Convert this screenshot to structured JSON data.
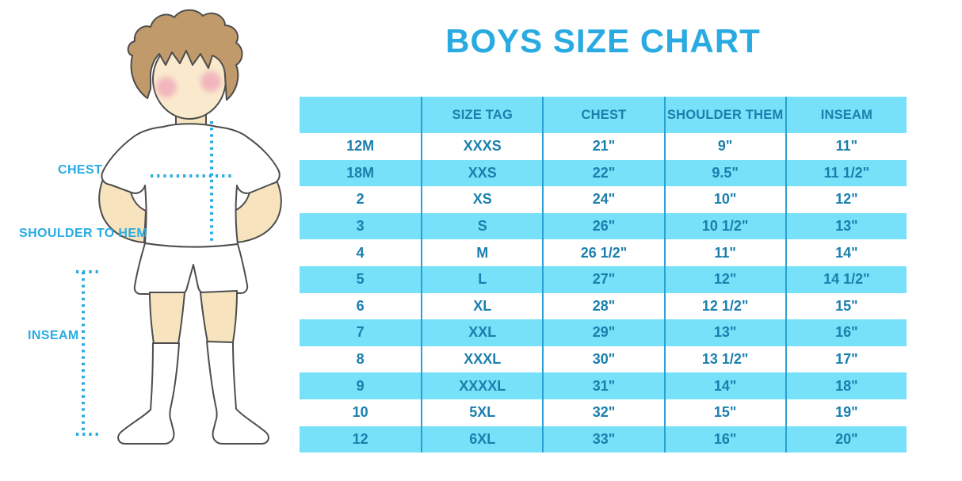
{
  "title": "BOYS SIZE CHART",
  "figure_labels": {
    "chest": "CHEST",
    "shoulder_to_hem": "SHOULDER TO HEM",
    "inseam": "INSEAM"
  },
  "chart_data": {
    "type": "table",
    "title": "BOYS SIZE CHART",
    "columns": [
      "",
      "SIZE TAG",
      "CHEST",
      "SHOULDER THEM",
      "INSEAM"
    ],
    "rows": [
      [
        "12M",
        "XXXS",
        "21\"",
        "9\"",
        "11\""
      ],
      [
        "18M",
        "XXS",
        "22\"",
        "9.5\"",
        "11 1/2\""
      ],
      [
        "2",
        "XS",
        "24\"",
        "10\"",
        "12\""
      ],
      [
        "3",
        "S",
        "26\"",
        "10 1/2\"",
        "13\""
      ],
      [
        "4",
        "M",
        "26 1/2\"",
        "11\"",
        "14\""
      ],
      [
        "5",
        "L",
        "27\"",
        "12\"",
        "14 1/2\""
      ],
      [
        "6",
        "XL",
        "28\"",
        "12 1/2\"",
        "15\""
      ],
      [
        "7",
        "XXL",
        "29\"",
        "13\"",
        "16\""
      ],
      [
        "8",
        "XXXL",
        "30\"",
        "13 1/2\"",
        "17\""
      ],
      [
        "9",
        "XXXXL",
        "31\"",
        "14\"",
        "18\""
      ],
      [
        "10",
        "5XL",
        "32\"",
        "15\"",
        "19\""
      ],
      [
        "12",
        "6XL",
        "33\"",
        "16\"",
        "20\""
      ]
    ],
    "layout": {
      "banding": "alternating white/cyan starting white, header cyan",
      "grid": "vertical dividers only"
    }
  },
  "colors": {
    "accent_blue": "#29ABE2",
    "band_cyan": "#76E1F9",
    "table_text": "#1B7FAD",
    "divider_blue": "#2BA0D4",
    "skin": "#F7E4BE",
    "face": "#FAEACD",
    "hair": "#C19A6B",
    "cheek": "#EFA9B9",
    "outline": "#4D4D4D"
  }
}
